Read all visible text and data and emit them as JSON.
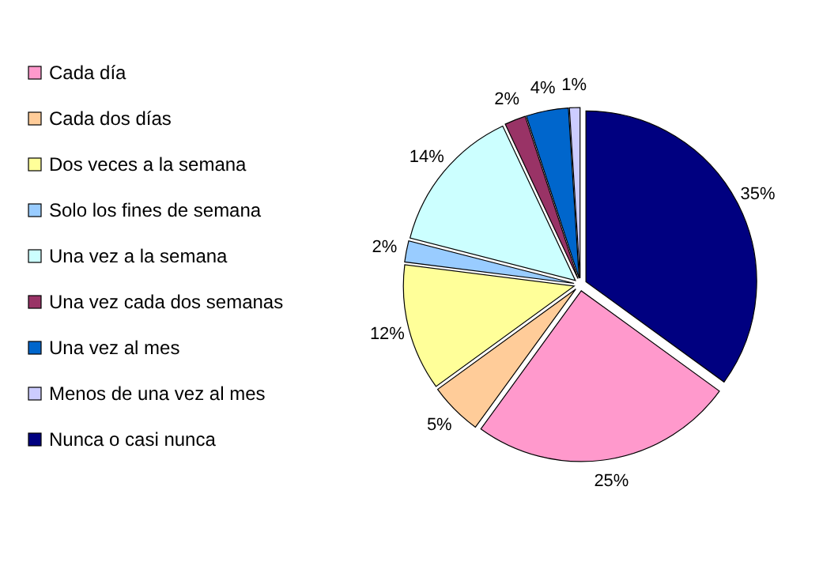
{
  "chart_data": {
    "type": "pie",
    "categories": [
      "Cada día",
      "Cada dos días",
      "Dos veces a la semana",
      "Solo los fines de semana",
      "Una vez a la semana",
      "Una vez cada dos semanas",
      "Una vez al mes",
      "Menos de una vez al mes",
      "Nunca o casi nunca"
    ],
    "values": [
      25,
      5,
      12,
      2,
      14,
      2,
      4,
      1,
      35
    ],
    "colors": [
      "#ff99cc",
      "#ffcc99",
      "#ffff99",
      "#99ccff",
      "#ccffff",
      "#993366",
      "#0066cc",
      "#ccccff",
      "#000080"
    ],
    "value_labels": [
      "25%",
      "5%",
      "12%",
      "2%",
      "14%",
      "2%",
      "4%",
      "1%",
      "35%"
    ],
    "legend": "left"
  }
}
